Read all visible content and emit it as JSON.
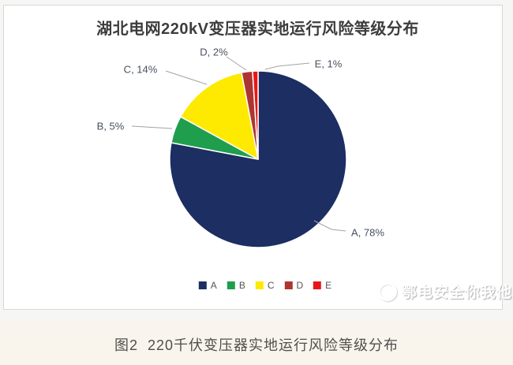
{
  "chart_data": {
    "type": "pie",
    "title": "湖北电网220kV变压器实地运行风险等级分布",
    "start_angle_deg_from_top": 0,
    "direction": "clockwise",
    "legend_position": "bottom",
    "categories": [
      "A",
      "B",
      "C",
      "D",
      "E"
    ],
    "series": [
      {
        "name": "A",
        "value": 78,
        "color": "#1c2e62",
        "label": "A, 78%"
      },
      {
        "name": "B",
        "value": 5,
        "color": "#1f9e4e",
        "label": "B, 5%"
      },
      {
        "name": "C",
        "value": 14,
        "color": "#fdea00",
        "label": "C, 14%"
      },
      {
        "name": "D",
        "value": 2,
        "color": "#ad3531",
        "label": "D, 2%"
      },
      {
        "name": "E",
        "value": 1,
        "color": "#e81717",
        "label": "E, 1%"
      }
    ]
  },
  "watermark": {
    "text": "鄂电安全你我他"
  },
  "caption": {
    "text": "图2  220千伏变压器实地运行风险等级分布"
  }
}
